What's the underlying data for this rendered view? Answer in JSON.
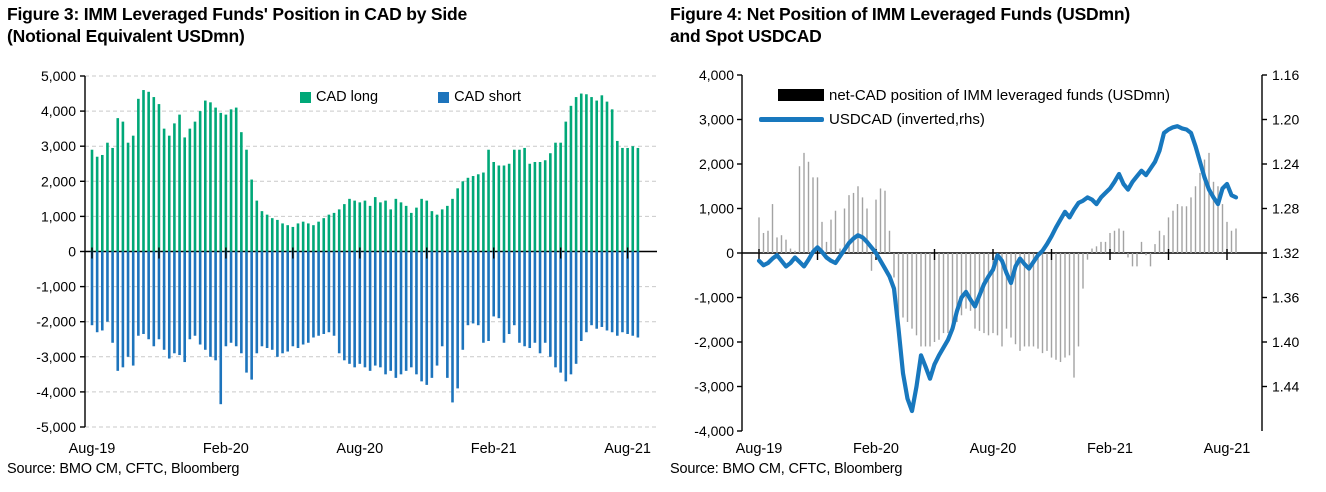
{
  "page": {
    "background": "#ffffff"
  },
  "colors": {
    "cad_long_green": "#00a878",
    "cad_short_blue": "#1d74bc",
    "usdcad_line_blue": "#1878be",
    "net_bar_gray": "#a3a3a3",
    "gridline_gray": "#c9c9c9",
    "axis_black": "#000000"
  },
  "chart_data": [
    {
      "type": "bar",
      "title": "Figure 3: IMM Leveraged Funds' Position in CAD by Side (Notional Equivalent USDmn)",
      "title_line1": "Figure 3: IMM Leveraged Funds' Position in CAD by Side",
      "title_line2": "(Notional Equivalent USDmn)",
      "source": "Source: BMO CM, CFTC, Bloomberg",
      "legend": {
        "long": "CAD long",
        "short": "CAD short"
      },
      "x_tick_labels": [
        "Aug-19",
        "Feb-20",
        "Aug-20",
        "Feb-21",
        "Aug-21"
      ],
      "x_label_weeks": [
        0,
        26,
        52,
        78,
        104
      ],
      "x_minor_tick_weeks": [
        0,
        13,
        26,
        39,
        52,
        65,
        78,
        91,
        104
      ],
      "frequency": "weekly",
      "ylim": [
        -5000,
        5000
      ],
      "y_tick_step": 1000,
      "y_tick_labels": [
        "5,000",
        "4,000",
        "3,000",
        "2,000",
        "1,000",
        "0",
        "-1,000",
        "-2,000",
        "-3,000",
        "-4,000",
        "-5,000"
      ],
      "grid": "horizontal-dashed",
      "legend_position": "top-center-inside",
      "series": [
        {
          "name": "CAD long",
          "color": "#00a878",
          "values": [
            2900,
            2700,
            2750,
            3100,
            2950,
            3800,
            3700,
            3100,
            3300,
            4350,
            4600,
            4550,
            4400,
            4200,
            3500,
            3300,
            3650,
            3900,
            3250,
            3500,
            3700,
            4000,
            4300,
            4250,
            4100,
            3950,
            3900,
            4050,
            4100,
            3400,
            2900,
            2050,
            1450,
            1150,
            1050,
            950,
            900,
            800,
            750,
            700,
            800,
            850,
            800,
            750,
            850,
            950,
            1050,
            1100,
            1200,
            1350,
            1500,
            1450,
            1400,
            1450,
            1300,
            1550,
            1400,
            1450,
            1200,
            1500,
            1400,
            1300,
            1100,
            1250,
            1500,
            1450,
            1150,
            1050,
            1200,
            1300,
            1500,
            1800,
            2000,
            2100,
            2150,
            2200,
            2250,
            2900,
            2550,
            2450,
            2450,
            2500,
            2900,
            2900,
            2950,
            2500,
            2550,
            2550,
            2600,
            2800,
            3100,
            3100,
            3700,
            4150,
            4400,
            4500,
            4480,
            4400,
            4300,
            4450,
            4270,
            4050,
            3150,
            2950,
            2950,
            3000,
            2950
          ]
        },
        {
          "name": "CAD short",
          "color": "#1d74bc",
          "values": [
            -2100,
            -2300,
            -2250,
            -2000,
            -2600,
            -3400,
            -3300,
            -3000,
            -3250,
            -2400,
            -2350,
            -2500,
            -2700,
            -2500,
            -2800,
            -3050,
            -2900,
            -2950,
            -3150,
            -2500,
            -2400,
            -2650,
            -2800,
            -3000,
            -3100,
            -4350,
            -2700,
            -2600,
            -2700,
            -2900,
            -3450,
            -3650,
            -2900,
            -2700,
            -2750,
            -2800,
            -3000,
            -2900,
            -2850,
            -2700,
            -2750,
            -2650,
            -2600,
            -2450,
            -2400,
            -2350,
            -2300,
            -2400,
            -2900,
            -3100,
            -3200,
            -3300,
            -3200,
            -3300,
            -3400,
            -3250,
            -3300,
            -3500,
            -3400,
            -3600,
            -3500,
            -3400,
            -3300,
            -3500,
            -3700,
            -3800,
            -3600,
            -3250,
            -2700,
            -3600,
            -4300,
            -3900,
            -2800,
            -2100,
            -2050,
            -2100,
            -2600,
            -2550,
            -1850,
            -1900,
            -2600,
            -2350,
            -2100,
            -2600,
            -2700,
            -2750,
            -2600,
            -2900,
            -2600,
            -3000,
            -3300,
            -3450,
            -3700,
            -3500,
            -3200,
            -2550,
            -2300,
            -2100,
            -2200,
            -2150,
            -2250,
            -2300,
            -2400,
            -2300,
            -2350,
            -2400,
            -2450
          ]
        }
      ]
    },
    {
      "type": "bar+line",
      "title": "Figure 4: Net Position of IMM Leveraged Funds (USDmn) and Spot USDCAD",
      "title_line1": "Figure 4: Net Position of IMM Leveraged Funds (USDmn)",
      "title_line2": "and Spot USDCAD",
      "source": "Source: BMO CM, CFTC, Bloomberg",
      "legend": {
        "net": "net-CAD position of IMM leveraged funds (USDmn)",
        "usdcad": "USDCAD (inverted,rhs)"
      },
      "x_tick_labels": [
        "Aug-19",
        "Feb-20",
        "Aug-20",
        "Feb-21",
        "Aug-21"
      ],
      "x_label_weeks": [
        0,
        26,
        52,
        78,
        104
      ],
      "x_minor_tick_weeks": [
        0,
        13,
        26,
        39,
        52,
        65,
        78,
        91,
        104
      ],
      "frequency": "weekly",
      "ylim_left": [
        -4000,
        4000
      ],
      "y_tick_labels_left": [
        "4,000",
        "3,000",
        "2,000",
        "1,000",
        "0",
        "-1,000",
        "-2,000",
        "-3,000",
        "-4,000"
      ],
      "ylim_right": [
        1.16,
        1.44
      ],
      "right_axis_inverted": true,
      "y_tick_labels_right": [
        "1.16",
        "1.20",
        "1.24",
        "1.28",
        "1.32",
        "1.36",
        "1.40",
        "1.44"
      ],
      "grid": "none",
      "legend_position": "top-left-inside",
      "series": [
        {
          "name": "net-CAD position of IMM leveraged funds (USDmn)",
          "axis": "left",
          "style": "bar",
          "color": "#a3a3a3",
          "values": [
            800,
            450,
            500,
            1100,
            350,
            400,
            300,
            100,
            50,
            1950,
            2250,
            2050,
            1700,
            1700,
            700,
            250,
            750,
            950,
            100,
            1000,
            1300,
            1350,
            1500,
            1250,
            1000,
            -400,
            1200,
            1450,
            1400,
            500,
            -550,
            -1600,
            -1450,
            -1550,
            -1700,
            -1850,
            -2100,
            -2100,
            -2100,
            -2000,
            -1950,
            -1800,
            -1800,
            -1700,
            -1550,
            -1400,
            -1250,
            -1300,
            -1700,
            -1750,
            -1800,
            -1850,
            -1800,
            -1850,
            -2100,
            -1700,
            -1900,
            -2050,
            -2200,
            -2100,
            -2100,
            -2100,
            -2150,
            -2250,
            -2200,
            -2350,
            -2400,
            -2450,
            -2350,
            -2300,
            -2800,
            -2100,
            -800,
            -150,
            100,
            150,
            250,
            250,
            450,
            500,
            550,
            500,
            -100,
            -300,
            -300,
            250,
            -50,
            -300,
            200,
            500,
            400,
            800,
            950,
            1100,
            1050,
            1050,
            1250,
            1500,
            1800,
            2100,
            2250,
            1600,
            1500,
            1100,
            700,
            500,
            550
          ]
        },
        {
          "name": "USDCAD (inverted,rhs)",
          "axis": "right",
          "style": "line",
          "color": "#1878be",
          "values": [
            1.327,
            1.331,
            1.329,
            1.325,
            1.322,
            1.327,
            1.332,
            1.329,
            1.324,
            1.328,
            1.332,
            1.326,
            1.319,
            1.315,
            1.319,
            1.324,
            1.327,
            1.329,
            1.323,
            1.317,
            1.311,
            1.307,
            1.304,
            1.306,
            1.31,
            1.315,
            1.32,
            1.327,
            1.334,
            1.341,
            1.352,
            1.388,
            1.428,
            1.451,
            1.462,
            1.44,
            1.412,
            1.422,
            1.433,
            1.42,
            1.412,
            1.405,
            1.398,
            1.388,
            1.372,
            1.36,
            1.355,
            1.362,
            1.368,
            1.358,
            1.348,
            1.341,
            1.335,
            1.322,
            1.327,
            1.338,
            1.347,
            1.332,
            1.325,
            1.33,
            1.334,
            1.328,
            1.322,
            1.318,
            1.312,
            1.305,
            1.297,
            1.29,
            1.283,
            1.288,
            1.281,
            1.275,
            1.273,
            1.27,
            1.272,
            1.276,
            1.27,
            1.266,
            1.262,
            1.256,
            1.249,
            1.258,
            1.263,
            1.256,
            1.251,
            1.246,
            1.25,
            1.244,
            1.238,
            1.228,
            1.212,
            1.209,
            1.207,
            1.206,
            1.208,
            1.209,
            1.212,
            1.224,
            1.238,
            1.252,
            1.263,
            1.27,
            1.276,
            1.262,
            1.258,
            1.268,
            1.27
          ]
        }
      ]
    }
  ]
}
